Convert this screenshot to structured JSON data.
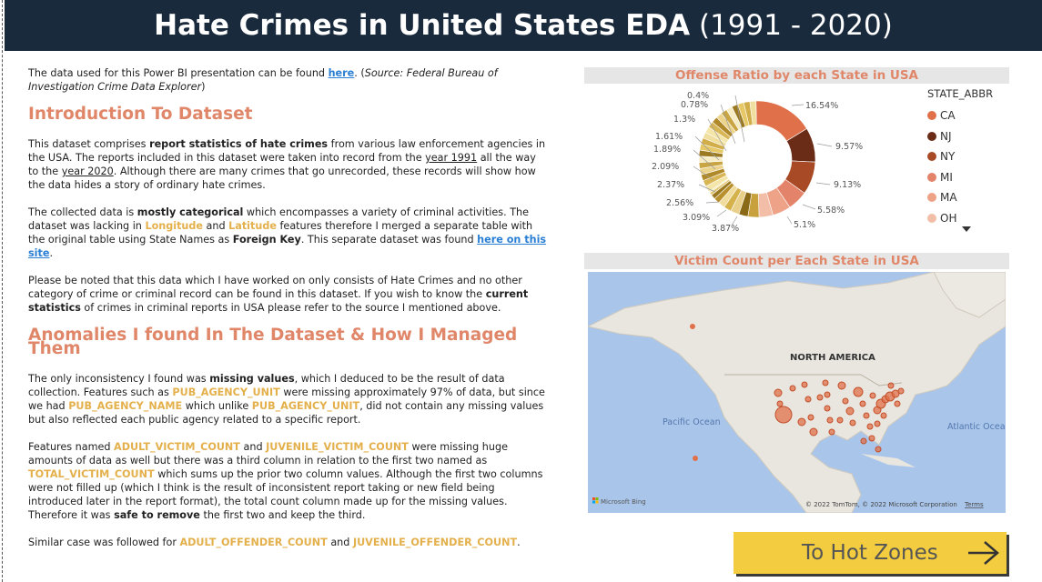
{
  "header": {
    "title_bold": "Hate Crimes in United States EDA",
    "title_years": "(1991 - 2020)"
  },
  "intro_para": {
    "a": "The data used for this Power BI presentation can be found ",
    "link": "here",
    "b": ". (",
    "source": "Source: Federal Bureau of Investigation Crime Data Explorer",
    "c": ")"
  },
  "sections": {
    "intro_heading": "Introduction To Dataset",
    "anomalies_heading": "Anomalies I found In The Dataset & How I Managed Them"
  },
  "para1": {
    "a": "This dataset comprises ",
    "b": "report statistics of hate crimes",
    "c": " from various law enforcement agencies in the USA. The reports included in this dataset were taken into record from the ",
    "d": "year 1991",
    "e": " all the way to the ",
    "f": "year 2020",
    "g": ". Although there are many crimes that go unrecorded, these records will show how the data hides a story of ordinary hate crimes."
  },
  "para2": {
    "a": "The collected data is ",
    "b": "mostly categorical",
    "c": " which encompasses a variety of criminal activities. The dataset was lacking in ",
    "d": "Longitude",
    "e": " and ",
    "f": "Latitude",
    "g": " features therefore I merged a separate table with the original table using State Names as ",
    "h": "Foreign Key",
    "i": ". This separate dataset was found ",
    "link": "here on this site",
    "j": "."
  },
  "para3": {
    "a": "Please be noted that this data which I have worked on only consists of Hate Crimes and no other category of crime or criminal record can be found in this dataset. If you wish to know the ",
    "b": "current statistics",
    "c": " of crimes in criminal reports in USA please refer to the source I mentioned above."
  },
  "para4": {
    "a": "The only inconsistency I found was ",
    "b": "missing values",
    "c": ", which I deduced to be the result of data collection. Features such as ",
    "d": "PUB_AGENCY_UNIT",
    "e": " were missing approximately 97% of data, but since we had ",
    "f": "PUB_AGENCY_NAME",
    "g": " which unlike ",
    "h": "PUB_AGENCY_UNIT",
    "i": ", did not contain any missing values but also reflected each public agency related to a specific report."
  },
  "para5": {
    "a": "Features named ",
    "b": "ADULT_VICTIM_COUNT",
    "c": " and ",
    "d": "JUVENILE_VICTIM_COUNT",
    "e": " were missing huge amounts of data as well but there was a third column in relation to the first two named as ",
    "f": "TOTAL_VICTIM_COUNT",
    "g": " which sums up the prior two column values. Although the first two columns were not filled up (which I think is the result of inconsistent report taking or new field being introduced later in the report format), the total count column made up for the missing values. Therefore it was ",
    "h": "safe to remove",
    "i": " the first two and keep the third."
  },
  "para6": {
    "a": "Similar case was followed for ",
    "b": "ADULT_OFFENDER_COUNT",
    "c": " and ",
    "d": "JUVENILE_OFFENDER_COUNT",
    "e": "."
  },
  "donut": {
    "title": "Offense Ratio by each State in USA",
    "legend_title": "STATE_ABBR",
    "legend": [
      {
        "label": "CA",
        "color": "#e0704a"
      },
      {
        "label": "NJ",
        "color": "#6b2c17"
      },
      {
        "label": "NY",
        "color": "#a84a26"
      },
      {
        "label": "MI",
        "color": "#e3836a"
      },
      {
        "label": "MA",
        "color": "#eea287"
      },
      {
        "label": "OH",
        "color": "#f2bea8"
      }
    ],
    "labels": [
      "16.54%",
      "9.57%",
      "9.13%",
      "5.58%",
      "5.1%",
      "3.87%",
      "3.09%",
      "2.56%",
      "2.37%",
      "2.09%",
      "1.89%",
      "1.61%",
      "1.3%",
      "0.78%",
      "0.4%"
    ]
  },
  "chart_data": {
    "type": "pie",
    "title": "Offense Ratio by each State in USA",
    "legend_title": "STATE_ABBR",
    "slices": [
      {
        "label": "CA",
        "value": 16.54,
        "color": "#e0704a"
      },
      {
        "label": "NJ",
        "value": 9.57,
        "color": "#6b2c17"
      },
      {
        "label": "NY",
        "value": 9.13,
        "color": "#a84a26"
      },
      {
        "label": "MI",
        "value": 5.58,
        "color": "#e3836a"
      },
      {
        "label": "MA",
        "value": 5.1,
        "color": "#eea287"
      },
      {
        "label": "OH",
        "value": 3.87,
        "color": "#f2bea8"
      },
      {
        "label": "",
        "value": 3.09,
        "color": "#c8a03c"
      },
      {
        "label": "",
        "value": 2.56,
        "color": "#8a6a16"
      },
      {
        "label": "",
        "value": 2.37,
        "color": "#e9d08a"
      },
      {
        "label": "",
        "value": 2.09,
        "color": "#d6b24c"
      },
      {
        "label": "",
        "value": 1.89,
        "color": "#f0dc9c"
      },
      {
        "label": "",
        "value": 1.61,
        "color": "#b8902e"
      },
      {
        "label": "",
        "value": 1.3,
        "color": "#9c7a22"
      },
      {
        "label": "",
        "value": 0.78,
        "color": "#e2c670"
      },
      {
        "label": "",
        "value": 0.4,
        "color": "#f6e6b2"
      }
    ]
  },
  "map": {
    "title": "Victim Count per Each State in USA",
    "label_north_america": "NORTH AMERICA",
    "label_pacific": "Pacific Ocean",
    "label_atlantic": "Atlantic Ocean",
    "bing": "Microsoft Bing",
    "copyright": "© 2022 TomTom, © 2022 Microsoft Corporation",
    "terms": "Terms"
  },
  "button": {
    "label": "To Hot Zones"
  }
}
